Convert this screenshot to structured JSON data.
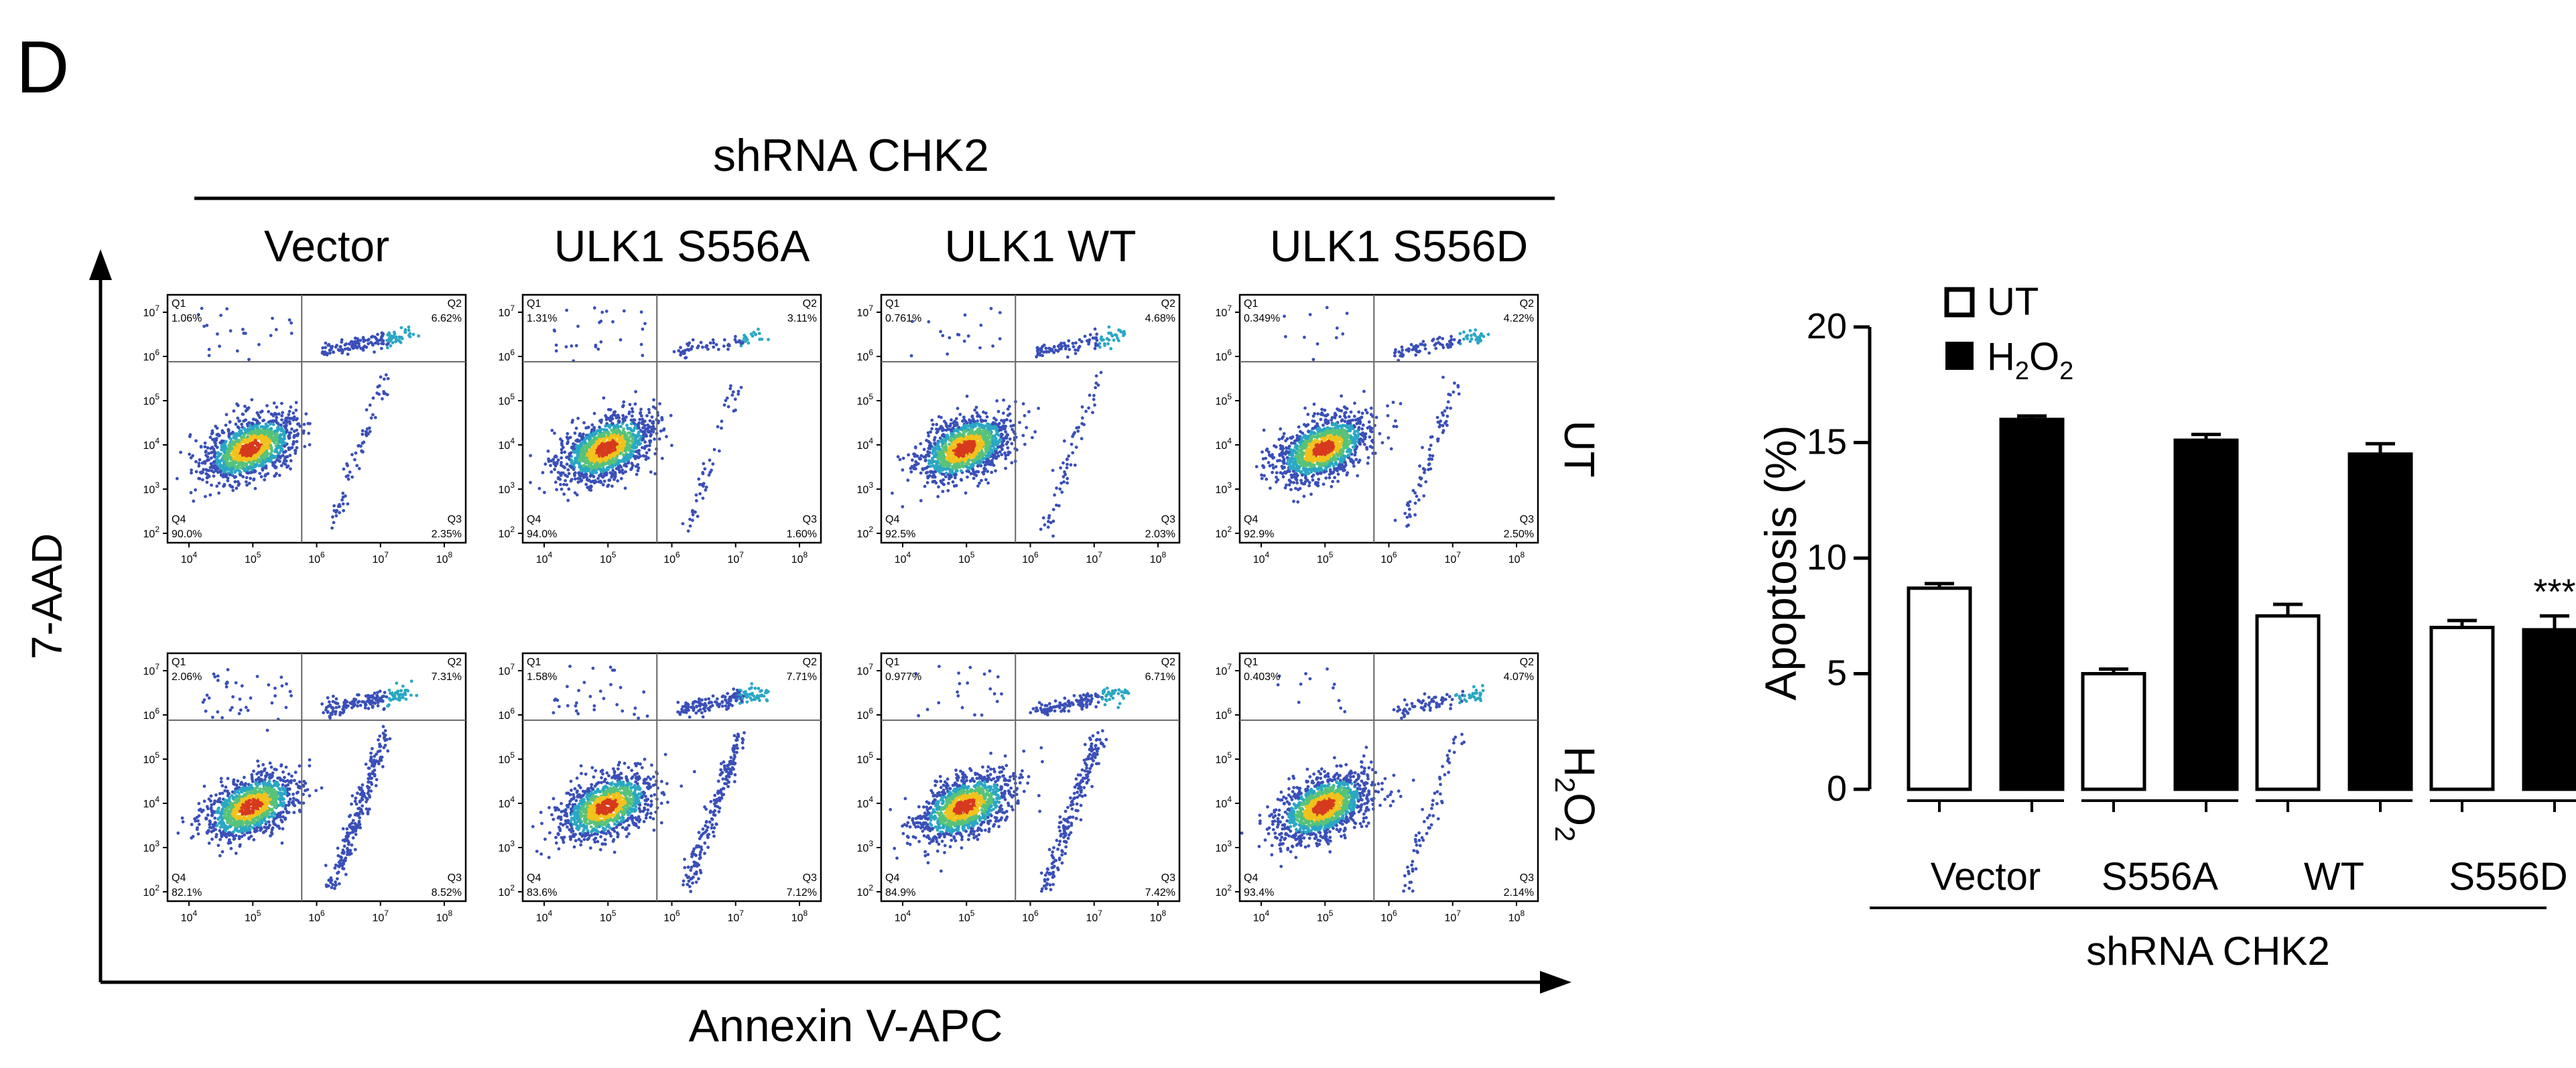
{
  "panel_label": "D",
  "flow": {
    "group_label": "shRNA CHK2",
    "columns": [
      "Vector",
      "ULK1 S556A",
      "ULK1 WT",
      "ULK1 S556D"
    ],
    "rows": [
      {
        "key": "UT",
        "label": "UT"
      },
      {
        "key": "H2O2",
        "label_parts": [
          "H",
          "2",
          "O",
          "2"
        ]
      }
    ],
    "y_axis_label": "7-AAD",
    "x_axis_label": "Annexin V-APC",
    "tick_base": "10",
    "x_tick_exponents": [
      "4",
      "5",
      "6",
      "7",
      "8"
    ],
    "y_tick_exponents": [
      "2",
      "3",
      "4",
      "5",
      "6",
      "7"
    ],
    "quadrant_names": [
      "Q1",
      "Q2",
      "Q3",
      "Q4"
    ],
    "plots": [
      {
        "row": "UT",
        "column": "Vector",
        "q1": "1.06%",
        "q2": "6.62%",
        "q3": "2.35%",
        "q4": "90.0%"
      },
      {
        "row": "UT",
        "column": "ULK1 S556A",
        "q1": "1.31%",
        "q2": "3.11%",
        "q3": "1.60%",
        "q4": "94.0%"
      },
      {
        "row": "UT",
        "column": "ULK1 WT",
        "q1": "0.761%",
        "q2": "4.68%",
        "q3": "2.03%",
        "q4": "92.5%"
      },
      {
        "row": "UT",
        "column": "ULK1 S556D",
        "q1": "0.349%",
        "q2": "4.22%",
        "q3": "2.50%",
        "q4": "92.9%"
      },
      {
        "row": "H2O2",
        "column": "Vector",
        "q1": "2.06%",
        "q2": "7.31%",
        "q3": "8.52%",
        "q4": "82.1%"
      },
      {
        "row": "H2O2",
        "column": "ULK1 S556A",
        "q1": "1.58%",
        "q2": "7.71%",
        "q3": "7.12%",
        "q4": "83.6%"
      },
      {
        "row": "H2O2",
        "column": "ULK1 WT",
        "q1": "0.977%",
        "q2": "6.71%",
        "q3": "7.42%",
        "q4": "84.9%"
      },
      {
        "row": "H2O2",
        "column": "ULK1 S556D",
        "q1": "0.403%",
        "q2": "4.07%",
        "q3": "2.14%",
        "q4": "93.4%"
      }
    ]
  },
  "chart_data": {
    "type": "bar",
    "categories": [
      "Vector",
      "S556A",
      "WT",
      "S556D"
    ],
    "series": [
      {
        "name": "UT",
        "values": [
          8.7,
          5.0,
          7.5,
          7.0
        ],
        "errors": [
          0.2,
          0.2,
          0.5,
          0.3
        ]
      },
      {
        "name": "H2O2",
        "values": [
          16.0,
          15.1,
          14.5,
          6.9
        ],
        "errors": [
          0.15,
          0.25,
          0.45,
          0.6
        ]
      }
    ],
    "legend": [
      {
        "label": "UT"
      },
      {
        "label_parts": [
          "H",
          "2",
          "O",
          "2"
        ]
      }
    ],
    "ylabel": "Apoptosis (%)",
    "xlabel": "shRNA CHK2",
    "ylim": [
      0,
      20
    ],
    "yticks": [
      0,
      5,
      10,
      15,
      20
    ],
    "annotation": {
      "category": "S556D",
      "series": "H2O2",
      "text": "***"
    },
    "colors": {
      "UT": "#ffffff",
      "H2O2": "#000000",
      "edge": "#000000"
    }
  }
}
